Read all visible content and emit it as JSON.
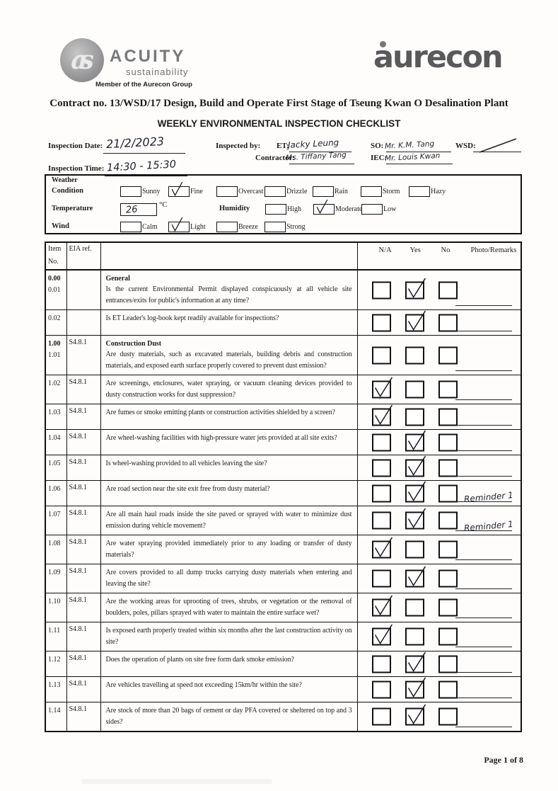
{
  "colors": {
    "logo_gray": "#59595c",
    "ink": "#1b1b1b"
  },
  "branding": {
    "acuity_monogram": "as",
    "acuity_name": "ACUITY",
    "acuity_tagline": "sustainability",
    "acuity_member": "Member of the Aurecon Group",
    "aurecon_wordmark": "aurecon"
  },
  "titles": {
    "contract": "Contract no.  13/WSD/17 Design, Build and Operate First Stage of Tseung Kwan O Desalination Plant",
    "checklist": "WEEKLY ENVIRONMENTAL INSPECTION CHECKLIST"
  },
  "fields": {
    "inspection_date": {
      "label": "Inspection Date:",
      "value": "21/2/2023"
    },
    "inspection_time": {
      "label": "Inspection Time:",
      "value": "14:30 - 15:30"
    },
    "inspected_by_label": "Inspected by:",
    "et": {
      "label": "ET:",
      "value": "Jacky Leung"
    },
    "contractor": {
      "label": "Contractor:",
      "value": "Ms. Tiffany Tang"
    },
    "so": {
      "label": "SO:",
      "value": "Mr. K.M. Tang"
    },
    "iec": {
      "label": "IEC:",
      "value": "Mr. Louis Kwan"
    },
    "wsd": {
      "label": "WSD:",
      "value": "/"
    }
  },
  "weather": {
    "title": "Weather",
    "condition": {
      "label": "Condition",
      "options": [
        {
          "label": "Sunny",
          "checked": false
        },
        {
          "label": "Fine",
          "checked": true
        },
        {
          "label": "Overcast",
          "checked": false
        },
        {
          "label": "Drizzle",
          "checked": false
        },
        {
          "label": "Rain",
          "checked": false
        },
        {
          "label": "Storm",
          "checked": false
        },
        {
          "label": "Hazy",
          "checked": false
        }
      ]
    },
    "temperature": {
      "label": "Temperature",
      "value": "26",
      "unit": "°C"
    },
    "humidity": {
      "label": "Humidity",
      "options": [
        {
          "label": "High",
          "checked": false
        },
        {
          "label": "Moderate",
          "checked": true
        },
        {
          "label": "Low",
          "checked": false
        }
      ]
    },
    "wind": {
      "label": "Wind",
      "options": [
        {
          "label": "Calm",
          "checked": false
        },
        {
          "label": "Light",
          "checked": true
        },
        {
          "label": "Breeze",
          "checked": false
        },
        {
          "label": "Strong",
          "checked": false
        }
      ]
    }
  },
  "table": {
    "headers": {
      "item_line1": "Item",
      "item_line2": "No.",
      "eia": "EIA ref.",
      "na": "N/A",
      "yes": "Yes",
      "no": "No",
      "remarks": "Photo/Remarks"
    },
    "rows": [
      {
        "items": [
          "0.00",
          "0.01"
        ],
        "eia": "",
        "section": "General",
        "question": "Is the current Environmental Permit displayed conspicuously at all vehicle site entrances/exits for public's information at any time?",
        "answer": "yes",
        "remark": ""
      },
      {
        "items": [
          "0.02"
        ],
        "eia": "",
        "section": "",
        "question": "Is ET Leader's log-book kept readily available for inspections?",
        "answer": "yes",
        "remark": ""
      },
      {
        "items": [
          "1.00",
          "1.01"
        ],
        "eia": "S4.8.1",
        "section": "Construction Dust",
        "question": "Are dusty materials, such as excavated materials, building debris and construction materials, and exposed earth surface properly covered to prevent dust emission?",
        "answer": "",
        "remark": ""
      },
      {
        "items": [
          "1.02"
        ],
        "eia": "S4.8.1",
        "section": "",
        "question": "Are screenings, enclosures, water spraying, or vacuum cleaning devices provided to dusty construction works for dust suppression?",
        "answer": "na",
        "remark": ""
      },
      {
        "items": [
          "1.03"
        ],
        "eia": "S4.8.1",
        "section": "",
        "question": "Are fumes or smoke emitting plants or construction activities shielded by a screen?",
        "answer": "na",
        "remark": ""
      },
      {
        "items": [
          "1.04"
        ],
        "eia": "S4.8.1",
        "section": "",
        "question": "Are wheel-washing facilities with high-pressure water jets provided at all site exits?",
        "answer": "yes",
        "remark": ""
      },
      {
        "items": [
          "1.05"
        ],
        "eia": "S4.8.1",
        "section": "",
        "question": "Is wheel-washing provided to all vehicles leaving the site?",
        "answer": "yes",
        "remark": ""
      },
      {
        "items": [
          "1.06"
        ],
        "eia": "S4.8.1",
        "section": "",
        "question": "Are road section near the site exit free from dusty material?",
        "answer": "yes",
        "remark": "Reminder 1"
      },
      {
        "items": [
          "1.07"
        ],
        "eia": "S4.8.1",
        "section": "",
        "question": "Are all main haul roads inside the site paved or sprayed with water to minimize dust emission during vehicle movement?",
        "answer": "yes",
        "remark": "Reminder 1"
      },
      {
        "items": [
          "1.08"
        ],
        "eia": "S4.8.1",
        "section": "",
        "question": "Are water spraying provided immediately prior to any loading or transfer of dusty materials?",
        "answer": "na",
        "remark": ""
      },
      {
        "items": [
          "1.09"
        ],
        "eia": "S4.8.1",
        "section": "",
        "question": "Are covers provided to all dump trucks carrying dusty materials when entering and leaving the site?",
        "answer": "yes",
        "remark": ""
      },
      {
        "items": [
          "1.10"
        ],
        "eia": "S4.8.1",
        "section": "",
        "question": "Are the working areas for uprooting of trees, shrubs, or vegetation or the removal of boulders, poles, pillars sprayed with water to maintain the entire surface wet?",
        "answer": "na",
        "remark": ""
      },
      {
        "items": [
          "1.11"
        ],
        "eia": "S4.8.1",
        "section": "",
        "question": "Is exposed earth properly treated within six months after the last construction activity on site?",
        "answer": "na",
        "remark": ""
      },
      {
        "items": [
          "1.12"
        ],
        "eia": "S4.8.1",
        "section": "",
        "question": "Does the operation of plants on site free form dark smoke emission?",
        "answer": "yes",
        "remark": ""
      },
      {
        "items": [
          "1.13"
        ],
        "eia": "S4.8.1",
        "section": "",
        "question": "Are vehicles travelling at speed not exceeding 15km/hr within the site?",
        "answer": "yes",
        "remark": ""
      },
      {
        "items": [
          "1.14"
        ],
        "eia": "S4.8.1",
        "section": "",
        "question": "Are stock of more than 20 bags of cement or day PFA covered or sheltered on top and 3 sides?",
        "answer": "yes",
        "remark": ""
      }
    ]
  },
  "footer": {
    "page": "Page 1 of 8"
  }
}
